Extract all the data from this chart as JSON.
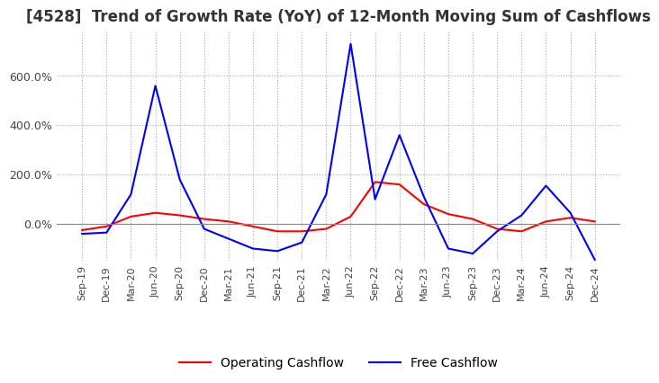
{
  "title": "[4528]  Trend of Growth Rate (YoY) of 12-Month Moving Sum of Cashflows",
  "title_fontsize": 12,
  "ylim": [
    -150,
    780
  ],
  "yticks": [
    0.0,
    200.0,
    400.0,
    600.0
  ],
  "yticklabels": [
    "0.0%",
    "200.0%",
    "400.0%",
    "600.0%"
  ],
  "background_color": "#ffffff",
  "grid_color": "#aaaaaa",
  "x_labels": [
    "Sep-19",
    "Dec-19",
    "Mar-20",
    "Jun-20",
    "Sep-20",
    "Dec-20",
    "Mar-21",
    "Jun-21",
    "Sep-21",
    "Dec-21",
    "Mar-22",
    "Jun-22",
    "Sep-22",
    "Dec-22",
    "Mar-23",
    "Jun-23",
    "Sep-23",
    "Dec-23",
    "Mar-24",
    "Jun-24",
    "Sep-24",
    "Dec-24"
  ],
  "operating_cashflow": [
    -25,
    -10,
    30,
    45,
    35,
    20,
    10,
    -10,
    -30,
    -30,
    -20,
    30,
    170,
    160,
    80,
    40,
    20,
    -20,
    -30,
    10,
    25,
    10
  ],
  "free_cashflow": [
    -40,
    -35,
    120,
    560,
    180,
    -20,
    -60,
    -100,
    -110,
    -75,
    120,
    730,
    100,
    360,
    110,
    -100,
    -120,
    -30,
    35,
    155,
    45,
    -145
  ],
  "operating_color": "#ff0000",
  "free_color": "#0000ff",
  "legend_labels": [
    "Operating Cashflow",
    "Free Cashflow"
  ]
}
